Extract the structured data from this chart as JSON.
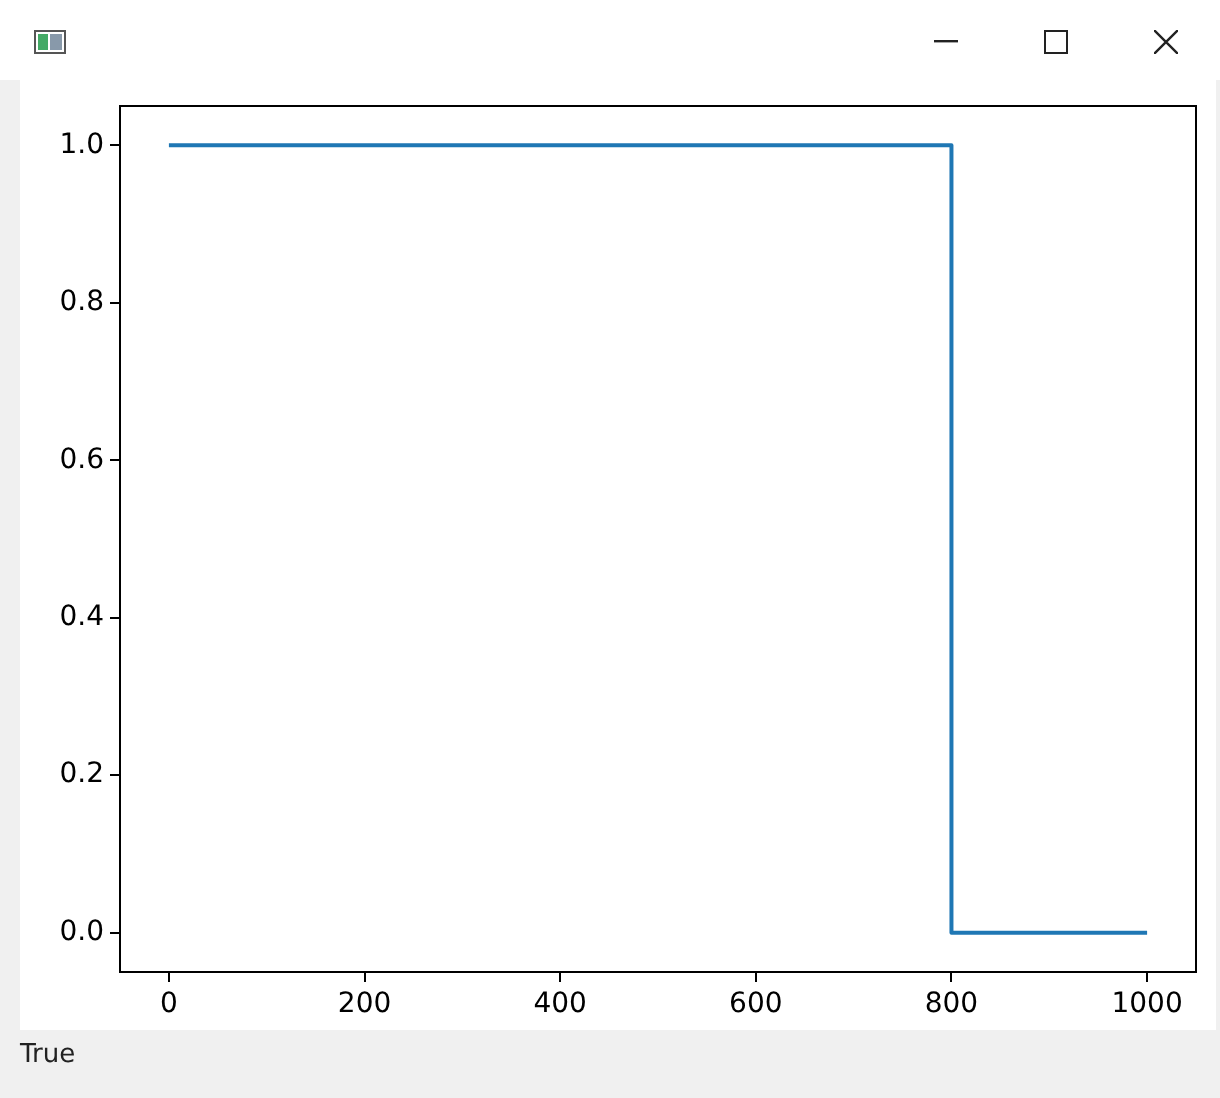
{
  "chart_data": {
    "type": "step",
    "x": [
      0,
      800,
      1000
    ],
    "series": [
      {
        "color": "#1f77b4",
        "values": [
          1,
          0,
          0
        ]
      }
    ],
    "xlim": [
      -50,
      1050
    ],
    "ylim": [
      -0.05,
      1.05
    ],
    "xticks": [
      0,
      200,
      400,
      600,
      800,
      1000
    ],
    "yticks": [
      {
        "value": 0,
        "label": "0.0"
      },
      {
        "value": 0.2,
        "label": "0.2"
      },
      {
        "value": 0.4,
        "label": "0.4"
      },
      {
        "value": 0.6,
        "label": "0.6"
      },
      {
        "value": 0.8,
        "label": "0.8"
      },
      {
        "value": 1,
        "label": "1.0"
      }
    ],
    "grid": false,
    "legend": false,
    "annotations": [
      "True"
    ]
  }
}
